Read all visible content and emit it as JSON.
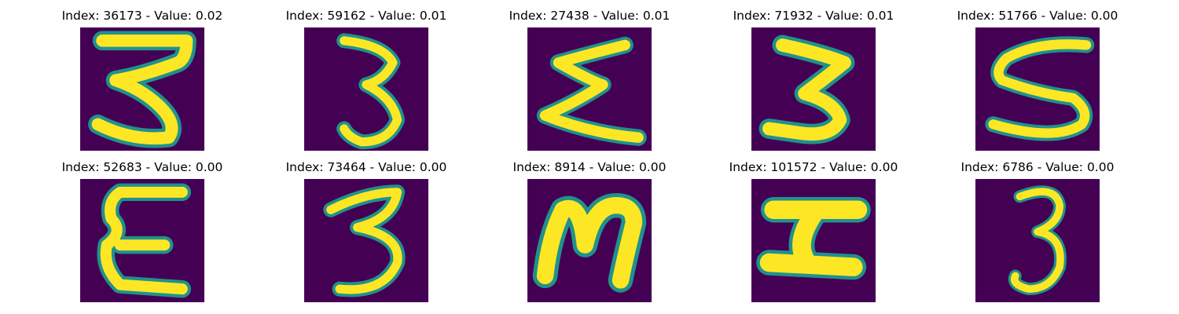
{
  "figure": {
    "background": "#ffffff",
    "colormap": "viridis",
    "bg_color": "#440154",
    "fg_color": "#fde725",
    "edge_color": "#21918c"
  },
  "chart_data": {
    "type": "image-grid",
    "rows": 2,
    "cols": 5,
    "panels": [
      {
        "title": "Index: 36173 - Value: 0.02",
        "index": 36173,
        "value": 0.02,
        "glyph": "3"
      },
      {
        "title": "Index: 59162 - Value: 0.01",
        "index": 59162,
        "value": 0.01,
        "glyph": "3"
      },
      {
        "title": "Index: 27438 - Value: 0.01",
        "index": 27438,
        "value": 0.01,
        "glyph": "Σ"
      },
      {
        "title": "Index: 71932 - Value: 0.01",
        "index": 71932,
        "value": 0.01,
        "glyph": "3"
      },
      {
        "title": "Index: 51766 - Value: 0.00",
        "index": 51766,
        "value": 0.0,
        "glyph": "S"
      },
      {
        "title": "Index: 52683 - Value: 0.00",
        "index": 52683,
        "value": 0.0,
        "glyph": "ε"
      },
      {
        "title": "Index: 73464 - Value: 0.00",
        "index": 73464,
        "value": 0.0,
        "glyph": "3"
      },
      {
        "title": "Index: 8914 - Value: 0.00",
        "index": 8914,
        "value": 0.0,
        "glyph": "M"
      },
      {
        "title": "Index: 101572 - Value: 0.00",
        "index": 101572,
        "value": 0.0,
        "glyph": "I"
      },
      {
        "title": "Index: 6786 - Value: 0.00",
        "index": 6786,
        "value": 0.0,
        "glyph": "3"
      }
    ]
  }
}
